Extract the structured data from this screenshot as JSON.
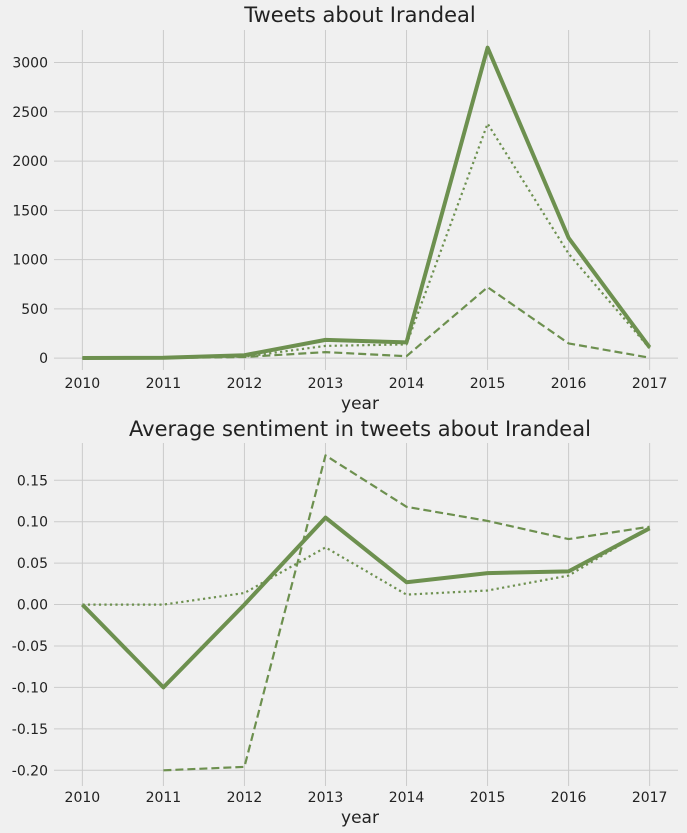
{
  "chart_data": [
    {
      "type": "line",
      "title": "Tweets about Irandeal",
      "xlabel": "year",
      "ylabel": "",
      "x": [
        2010,
        2011,
        2012,
        2013,
        2014,
        2015,
        2016,
        2017
      ],
      "ylim": [
        -120,
        3330
      ],
      "yticks": [
        0,
        500,
        1000,
        1500,
        2000,
        2500,
        3000
      ],
      "grid": true,
      "color": "#6d904f",
      "series": [
        {
          "style": "solid",
          "values": [
            2,
            5,
            30,
            185,
            160,
            3150,
            1220,
            110
          ]
        },
        {
          "style": "dotted",
          "values": [
            1,
            3,
            15,
            125,
            140,
            2380,
            1060,
            100
          ]
        },
        {
          "style": "dashed",
          "values": [
            1,
            2,
            12,
            62,
            20,
            720,
            150,
            5
          ]
        }
      ]
    },
    {
      "type": "line",
      "title": "Average sentiment in tweets about Irandeal",
      "xlabel": "year",
      "ylabel": "",
      "x": [
        2010,
        2011,
        2012,
        2013,
        2014,
        2015,
        2016,
        2017
      ],
      "ylim": [
        -0.219,
        0.195
      ],
      "yticks": [
        -0.2,
        -0.15,
        -0.1,
        -0.05,
        0.0,
        0.05,
        0.1,
        0.15
      ],
      "ytick_labels": [
        "-0.20",
        "-0.15",
        "-0.10",
        "-0.05",
        "0.00",
        "0.05",
        "0.10",
        "0.15"
      ],
      "grid": true,
      "color": "#6d904f",
      "series": [
        {
          "style": "solid",
          "values": [
            0.0,
            -0.1,
            0.0,
            0.105,
            0.027,
            0.038,
            0.04,
            0.092
          ]
        },
        {
          "style": "dotted",
          "values": [
            0.0,
            0.0,
            0.014,
            0.069,
            0.012,
            0.017,
            0.035,
            0.093
          ]
        },
        {
          "style": "dashed",
          "values": [
            null,
            -0.2,
            -0.196,
            0.18,
            0.118,
            0.101,
            0.079,
            0.094
          ]
        }
      ]
    }
  ]
}
